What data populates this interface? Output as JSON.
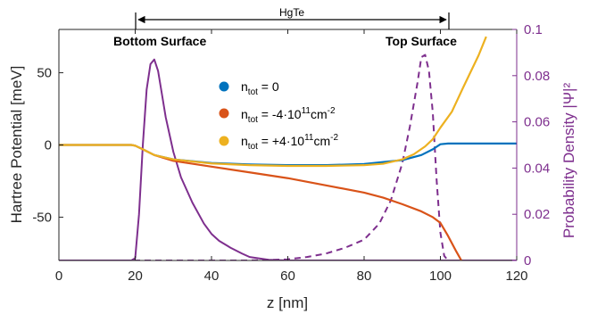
{
  "chart_data": {
    "type": "line",
    "xlabel": "z [nm]",
    "ylabel_left": "Hartree Potential [meV]",
    "ylabel_right": "Probability Density |Ψ|²",
    "xlim": [
      0,
      120
    ],
    "ylim_left": [
      -80,
      80
    ],
    "ylim_right": [
      0,
      0.1
    ],
    "x_ticks": [
      "0",
      "20",
      "40",
      "60",
      "80",
      "100",
      "120"
    ],
    "y_left_ticks": [
      "-50",
      "0",
      "50"
    ],
    "y_right_ticks": [
      "0",
      "0.02",
      "0.04",
      "0.06",
      "0.08",
      "0.1"
    ],
    "grid": false,
    "annotations": {
      "region_label": "HgTe",
      "bottom_surface": "Bottom Surface",
      "top_surface": "Top Surface"
    },
    "legend": {
      "placement": "center",
      "entries": [
        {
          "main": "n",
          "sub": "tot",
          "rest": " = 0",
          "color": "#0072BD"
        },
        {
          "main": "n",
          "sub": "tot",
          "rest": " = -4·10",
          "sup": "11",
          "rest2": "cm",
          "sup2": "-2",
          "color": "#D95319"
        },
        {
          "main": "n",
          "sub": "tot",
          "rest": " = +4·10",
          "sup": "11",
          "rest2": "cm",
          "sup2": "-2",
          "color": "#EDB120"
        }
      ]
    },
    "series_left": [
      {
        "color": "#0072BD",
        "x": [
          0,
          19,
          20,
          22,
          25,
          30,
          40,
          50,
          60,
          70,
          80,
          90,
          95,
          98,
          100,
          102,
          105,
          110,
          120
        ],
        "y": [
          0,
          0,
          -0.5,
          -3,
          -7,
          -10,
          -12.5,
          -13.5,
          -14,
          -14,
          -13.2,
          -10.5,
          -7,
          -3,
          0.5,
          1,
          1,
          1,
          1
        ]
      },
      {
        "color": "#D95319",
        "x": [
          0,
          19,
          20,
          22,
          25,
          30,
          40,
          50,
          60,
          70,
          80,
          85,
          90,
          95,
          98,
          100,
          102,
          104,
          105.5
        ],
        "y": [
          0,
          0,
          -0.5,
          -3,
          -7,
          -11,
          -15,
          -19,
          -23,
          -28,
          -33,
          -36.5,
          -41,
          -46,
          -50,
          -54,
          -63,
          -73,
          -80
        ]
      },
      {
        "color": "#EDB120",
        "x": [
          0,
          19,
          20,
          22,
          25,
          30,
          40,
          50,
          60,
          70,
          80,
          85,
          90,
          93,
          96,
          98,
          100,
          103,
          106,
          110,
          112
        ],
        "y": [
          0,
          0,
          -0.5,
          -3,
          -7,
          -10,
          -12.8,
          -14,
          -14.5,
          -14.5,
          -14,
          -13,
          -10,
          -6.5,
          -1,
          4,
          12,
          23,
          40,
          62,
          75
        ]
      }
    ],
    "series_right": [
      {
        "color": "#7E2F8E",
        "style": "solid",
        "x": [
          0,
          19,
          20,
          21,
          22,
          23,
          24,
          25,
          26,
          27,
          28,
          30,
          32,
          35,
          38,
          40,
          42,
          45,
          48,
          50,
          55,
          60,
          120
        ],
        "y": [
          0,
          0,
          0.001,
          0.02,
          0.05,
          0.074,
          0.085,
          0.087,
          0.082,
          0.072,
          0.062,
          0.047,
          0.036,
          0.025,
          0.016,
          0.0115,
          0.0085,
          0.0055,
          0.003,
          0.0015,
          0.0003,
          0,
          0
        ]
      },
      {
        "color": "#7E2F8E",
        "style": "dashed",
        "x": [
          0,
          40,
          50,
          60,
          65,
          70,
          75,
          80,
          84,
          87,
          90,
          92,
          94,
          95,
          96,
          97,
          98,
          99,
          100,
          101,
          102,
          120
        ],
        "y": [
          0,
          0,
          0,
          0.0005,
          0.0015,
          0.003,
          0.0055,
          0.009,
          0.016,
          0.026,
          0.042,
          0.058,
          0.077,
          0.088,
          0.089,
          0.082,
          0.064,
          0.035,
          0.012,
          0.002,
          0,
          0
        ]
      }
    ]
  }
}
